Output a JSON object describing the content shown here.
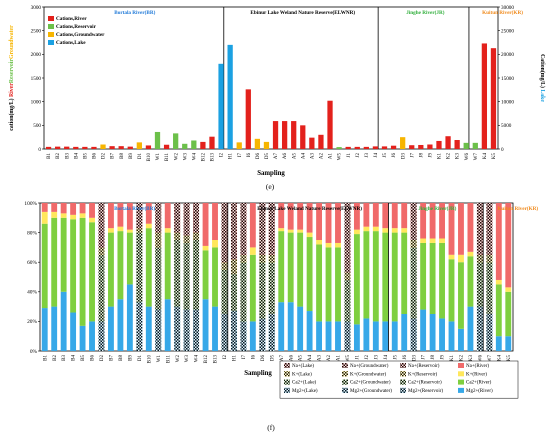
{
  "colors": {
    "river": "#e3211c",
    "reservoir": "#6cc04a",
    "groundwater": "#f7b500",
    "lake": "#1ba1e2",
    "na_river": "#f06a6a",
    "k_river": "#ffe75c",
    "ca_river": "#7fcf3f",
    "mg_river": "#36a8e8",
    "region_br": "#1e78d7",
    "region_elwnr": "#000000",
    "region_jr": "#2fae3a",
    "region_kr": "#f08a1c"
  },
  "chart_data": [
    {
      "type": "bar",
      "title": "(e)",
      "xlabel": "Sampling",
      "ylabel_left": [
        "cation(mg/L) ",
        "River",
        "Reservoir",
        "Groundwater"
      ],
      "ylabel_right": [
        "Cation(mg/L) ",
        "Lake"
      ],
      "ylim_left": [
        0,
        3000
      ],
      "ylim_right": [
        0,
        30000
      ],
      "yticks_left": [
        "0",
        "500",
        "1000",
        "1500",
        "2000",
        "2500",
        "3000"
      ],
      "yticks_right": [
        "0",
        "5000",
        "10000",
        "15000",
        "20000",
        "25000",
        "30000"
      ],
      "legend": [
        "Cations,River",
        "Cations,Reservoir",
        "Cations,Groundwater",
        "Cations,Lake"
      ],
      "legend_position": "top-left",
      "regions": [
        {
          "name": "Bortala River(BR)",
          "start": 0,
          "end": 19
        },
        {
          "name": "Ebinur Lake Weland Nature Reserve(ELWNR)",
          "start": 20,
          "end": 36
        },
        {
          "name": "Jinghe River(JR)",
          "start": 37,
          "end": 46
        },
        {
          "name": "Kuitun River(KR)",
          "start": 47,
          "end": 53
        }
      ],
      "categories": [
        "B1",
        "B2",
        "B3",
        "B4",
        "B5",
        "B6",
        "D2",
        "B7",
        "B8",
        "B9",
        "D1",
        "B10",
        "W1",
        "B11",
        "W2",
        "W3",
        "W4",
        "B12",
        "B13",
        "I2",
        "H1",
        "I7",
        "I6",
        "D6",
        "D5",
        "A7",
        "A6",
        "A5",
        "A4",
        "A3",
        "A2",
        "A1",
        "W5",
        "J1",
        "J2",
        "J3",
        "J4",
        "J5",
        "J6",
        "D3",
        "J7",
        "J8",
        "J9",
        "K1",
        "K2",
        "K3",
        "W6",
        "W7",
        "K4",
        "K5"
      ],
      "sample_type": [
        "River",
        "River",
        "River",
        "River",
        "River",
        "River",
        "Groundwater",
        "River",
        "River",
        "River",
        "Groundwater",
        "River",
        "Reservoir",
        "River",
        "Reservoir",
        "Reservoir",
        "Reservoir",
        "River",
        "River",
        "Lake",
        "Lake",
        "Groundwater",
        "River",
        "Groundwater",
        "Groundwater",
        "River",
        "River",
        "River",
        "River",
        "River",
        "River",
        "River",
        "Reservoir",
        "River",
        "River",
        "River",
        "River",
        "River",
        "River",
        "Groundwater",
        "River",
        "River",
        "River",
        "River",
        "River",
        "River",
        "Reservoir",
        "Reservoir",
        "River",
        "River"
      ],
      "values": [
        45,
        50,
        50,
        45,
        45,
        45,
        95,
        60,
        60,
        50,
        140,
        75,
        360,
        90,
        330,
        110,
        180,
        150,
        260,
        18000,
        22000,
        140,
        1260,
        215,
        150,
        590,
        590,
        590,
        500,
        240,
        300,
        1020,
        40,
        45,
        45,
        45,
        55,
        55,
        70,
        250,
        80,
        85,
        95,
        170,
        270,
        190,
        130,
        130,
        2230,
        2130
      ],
      "y_axis": [
        "left",
        "left",
        "left",
        "left",
        "left",
        "left",
        "left",
        "left",
        "left",
        "left",
        "left",
        "left",
        "left",
        "left",
        "left",
        "left",
        "left",
        "left",
        "left",
        "right",
        "right",
        "left",
        "left",
        "left",
        "left",
        "left",
        "left",
        "left",
        "left",
        "left",
        "left",
        "left",
        "left",
        "left",
        "left",
        "left",
        "left",
        "left",
        "left",
        "left",
        "left",
        "left",
        "left",
        "left",
        "left",
        "left",
        "left",
        "left",
        "left",
        "left"
      ]
    },
    {
      "type": "stacked-bar",
      "title": "(f)",
      "xlabel": "Sampling",
      "ylim": [
        0,
        100
      ],
      "yticks": [
        "0%",
        "20%",
        "40%",
        "60%",
        "80%",
        "100%"
      ],
      "regions": [
        {
          "name": "Bortala River(BR)",
          "start": 0,
          "end": 19
        },
        {
          "name": "Ebinur Lake Weland Nature Reserve(ELWNR)",
          "start": 20,
          "end": 36
        },
        {
          "name": "Jinghe River(JR)",
          "start": 37,
          "end": 46
        },
        {
          "name": "Kuitun River(KR)",
          "start": 47,
          "end": 53
        }
      ],
      "categories": [
        "B1",
        "B2",
        "B3",
        "B4",
        "B5",
        "B6",
        "D2",
        "B7",
        "B8",
        "B9",
        "D1",
        "B10",
        "W1",
        "B11",
        "W2",
        "W3",
        "W4",
        "B12",
        "B13",
        "I2",
        "H1",
        "I7",
        "I6",
        "D6",
        "D5",
        "A7",
        "A6",
        "A5",
        "A4",
        "A3",
        "A2",
        "A1",
        "W5",
        "J1",
        "J2",
        "J3",
        "J4",
        "J5",
        "J6",
        "D3",
        "J7",
        "J8",
        "J9",
        "K1",
        "K2",
        "K3",
        "W6",
        "W7",
        "K4",
        "K5"
      ],
      "sample_type": [
        "River",
        "River",
        "River",
        "River",
        "River",
        "River",
        "Groundwater",
        "River",
        "River",
        "River",
        "Groundwater",
        "River",
        "Reservoir",
        "River",
        "Reservoir",
        "Reservoir",
        "Reservoir",
        "River",
        "River",
        "Lake",
        "Lake",
        "Groundwater",
        "River",
        "Groundwater",
        "Groundwater",
        "River",
        "River",
        "River",
        "River",
        "River",
        "River",
        "River",
        "Reservoir",
        "River",
        "River",
        "River",
        "River",
        "River",
        "River",
        "Groundwater",
        "River",
        "River",
        "River",
        "River",
        "River",
        "River",
        "Reservoir",
        "Reservoir",
        "River",
        "River"
      ],
      "series": [
        {
          "name": "Mg2+",
          "values": [
            29,
            30,
            40,
            26,
            17,
            20,
            20,
            30,
            35,
            45,
            33,
            30,
            28,
            35,
            30,
            28,
            28,
            35,
            30,
            25,
            27,
            20,
            20,
            22,
            25,
            33,
            33,
            30,
            27,
            20,
            20,
            20,
            20,
            18,
            22,
            20,
            20,
            20,
            25,
            22,
            28,
            25,
            22,
            20,
            15,
            30,
            30,
            25,
            10,
            10
          ]
        },
        {
          "name": "Ca2+",
          "values": [
            57,
            60,
            50,
            63,
            73,
            67,
            45,
            50,
            46,
            35,
            47,
            53,
            42,
            45,
            45,
            45,
            47,
            33,
            40,
            30,
            25,
            40,
            45,
            38,
            35,
            48,
            47,
            50,
            50,
            52,
            50,
            50,
            28,
            61,
            59,
            61,
            60,
            60,
            55,
            48,
            45,
            48,
            51,
            42,
            45,
            34,
            30,
            35,
            35,
            30
          ]
        },
        {
          "name": "K+",
          "values": [
            8,
            4,
            3,
            3,
            3,
            3,
            5,
            3,
            3,
            2,
            3,
            3,
            10,
            3,
            5,
            5,
            5,
            3,
            5,
            5,
            10,
            5,
            5,
            5,
            5,
            2,
            2,
            2,
            3,
            3,
            3,
            3,
            5,
            3,
            3,
            3,
            3,
            3,
            3,
            5,
            3,
            3,
            3,
            3,
            5,
            3,
            5,
            5,
            3,
            3
          ]
        },
        {
          "name": "Na+",
          "values": [
            6,
            6,
            7,
            8,
            7,
            10,
            30,
            17,
            16,
            18,
            17,
            14,
            20,
            17,
            20,
            22,
            20,
            29,
            25,
            40,
            38,
            35,
            30,
            35,
            35,
            17,
            18,
            18,
            20,
            25,
            27,
            27,
            47,
            18,
            16,
            16,
            17,
            17,
            17,
            25,
            24,
            24,
            24,
            35,
            35,
            33,
            35,
            35,
            52,
            57
          ]
        }
      ],
      "legend": [
        "Na+(Lake)",
        "Na+(Groundwater)",
        "Na+(Reservoir)",
        "Na+(River)",
        "K+(Lake)",
        "K+(Groundwater)",
        "K+(Reservoir)",
        "K+(River)",
        "Ca2+(Lake)",
        "Ca2+(Groundwater)",
        "Ca2+(Reservoir)",
        "Ca2+(River)",
        "Mg2+(Lake)",
        "Mg2+(Groundwater)",
        "Mg2+(Reservoir)",
        "Mg2+(River)"
      ],
      "legend_position": "bottom-right"
    }
  ]
}
